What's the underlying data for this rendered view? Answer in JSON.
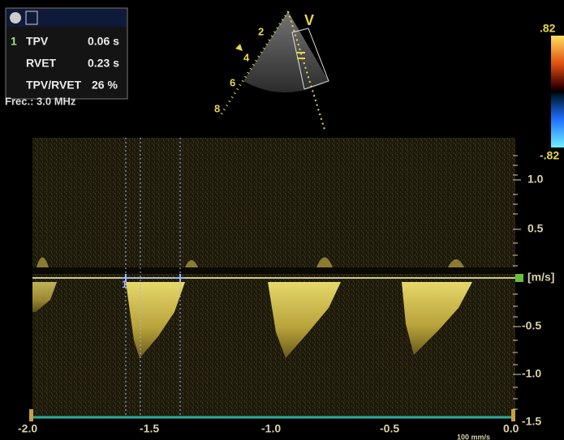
{
  "measurements": {
    "index": "1",
    "rows": [
      {
        "label": "TPV",
        "value": "0.06 s"
      },
      {
        "label": "RVET",
        "value": "0.23 s"
      },
      {
        "label": "TPV/RVET",
        "value": "26 %"
      }
    ]
  },
  "probe": {
    "frequency": "Frec.: 3.0 MHz",
    "view": "V",
    "depth_marks": [
      "2",
      "4",
      "6",
      "8"
    ]
  },
  "color_scale": {
    "max": ".82",
    "min": "-.82"
  },
  "velocity_axis": {
    "unit": "[m/s]",
    "ticks": [
      "1.0",
      "0.5",
      "-0.5",
      "-1.0",
      "-1.5"
    ]
  },
  "time_axis": {
    "ticks": [
      "-2.0",
      "-1.5",
      "-1.0",
      "-0.5",
      "0.0"
    ],
    "sweep": "100 mm/s"
  },
  "cursor_label": "1"
}
